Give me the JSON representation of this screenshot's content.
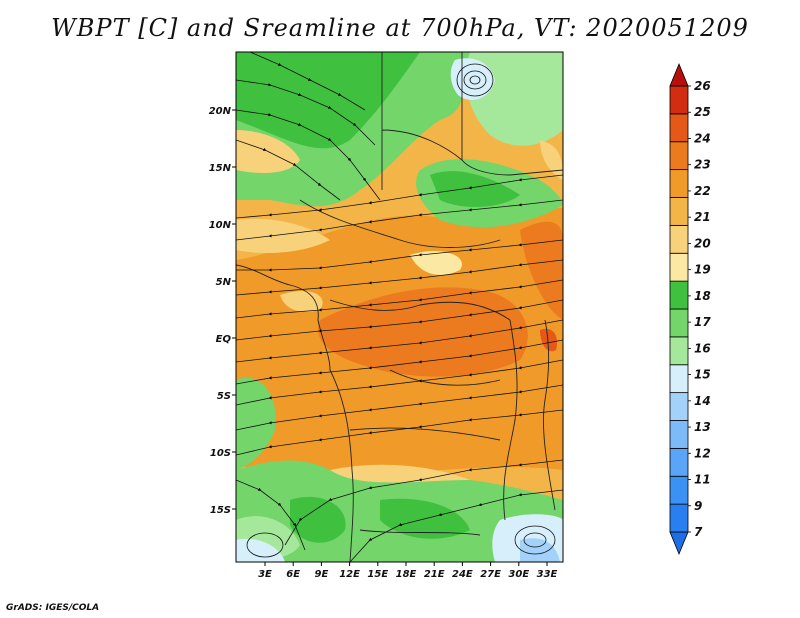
{
  "title": "WBPT [C] and Sreamline at 700hPa, VT: 2020051209",
  "credit": "GrADS: IGES/COLA",
  "map": {
    "lon_ticks": [
      "3E",
      "6E",
      "9E",
      "12E",
      "15E",
      "18E",
      "21E",
      "24E",
      "27E",
      "30E",
      "33E"
    ],
    "lat_ticks": [
      "20N",
      "15N",
      "10N",
      "5N",
      "EQ",
      "5S",
      "10S",
      "15S"
    ]
  },
  "colorbar": {
    "labels": [
      "7",
      "9",
      "11",
      "12",
      "13",
      "14",
      "15",
      "16",
      "17",
      "18",
      "19",
      "20",
      "21",
      "22",
      "23",
      "24",
      "25",
      "26"
    ],
    "colors": [
      "#1e6ee6",
      "#2a7ff0",
      "#3c91f5",
      "#5aa5f7",
      "#7cbaf8",
      "#a3d1fa",
      "#d6effb",
      "#a6e89b",
      "#73d56a",
      "#3fc03f",
      "#fbe9a3",
      "#f8d27a",
      "#f4b548",
      "#f09a2a",
      "#eb7b1e",
      "#e45818",
      "#d22c12",
      "#b80f0c"
    ]
  }
}
